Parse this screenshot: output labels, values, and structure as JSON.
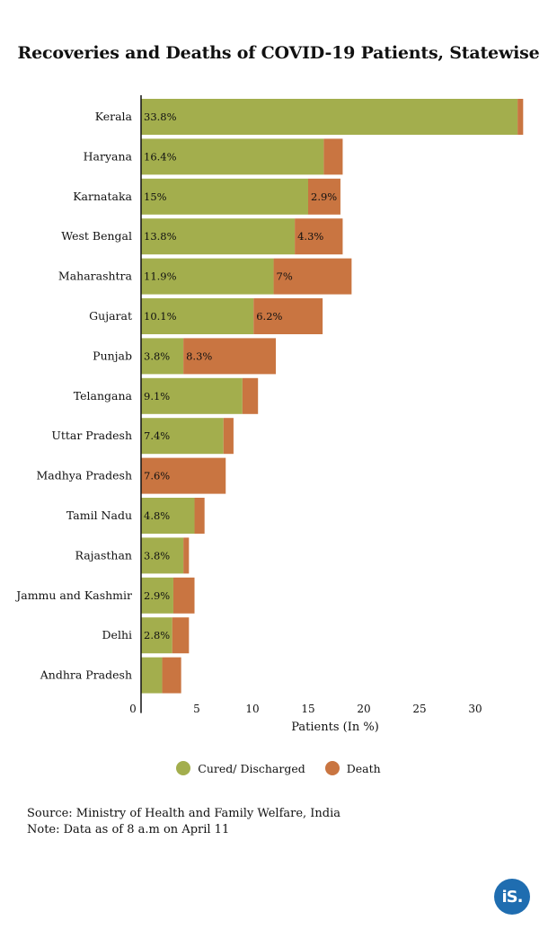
{
  "chart_data": {
    "type": "bar",
    "orientation": "horizontal",
    "stacked": true,
    "title": "Recoveries and Deaths of COVID-19 Patients, Statewise",
    "xlabel": "Patients (In %)",
    "ylabel": "",
    "xlim": [
      0,
      35
    ],
    "xticks": [
      "0",
      "5",
      "10",
      "15",
      "20",
      "25",
      "30"
    ],
    "categories": [
      "Kerala",
      "Haryana",
      "Karnataka",
      "West Bengal",
      "Maharashtra",
      "Gujarat",
      "Punjab",
      "Telangana",
      "Uttar Pradesh",
      "Madhya Pradesh",
      "Tamil Nadu",
      "Rajasthan",
      "Jammu and Kashmir",
      "Delhi",
      "Andhra Pradesh"
    ],
    "series": [
      {
        "name": "Cured/ Discharged",
        "color": "#a3ae4d",
        "values": [
          33.8,
          16.4,
          15,
          13.8,
          11.9,
          10.1,
          3.8,
          9.1,
          7.4,
          0,
          4.8,
          3.8,
          2.9,
          2.8,
          1.9
        ],
        "labels": [
          "33.8%",
          "16.4%",
          "15%",
          "13.8%",
          "11.9%",
          "10.1%",
          "3.8%",
          "9.1%",
          "7.4%",
          "",
          "4.8%",
          "3.8%",
          "2.9%",
          "2.8%",
          ""
        ]
      },
      {
        "name": "Death",
        "color": "#c97541",
        "values": [
          0.5,
          1.7,
          2.9,
          4.3,
          7.0,
          6.2,
          8.3,
          1.4,
          0.9,
          7.6,
          0.9,
          0.5,
          1.9,
          1.5,
          1.7
        ],
        "labels": [
          "",
          "",
          "2.9%",
          "4.3%",
          "7%",
          "6.2%",
          "8.3%",
          "",
          "",
          "7.6%",
          "",
          "",
          "",
          "",
          ""
        ]
      }
    ],
    "legend_position": "bottom",
    "grid": false
  },
  "source_line": "Source: Ministry of Health and Family Welfare, India",
  "note_line": "Note: Data as of 8 a.m on April 11",
  "logo_text": "iS."
}
